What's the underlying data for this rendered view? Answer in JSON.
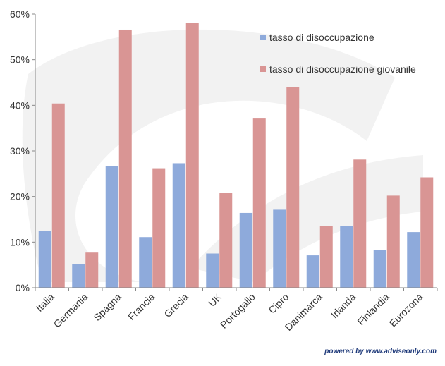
{
  "chart_data": {
    "type": "bar",
    "categories": [
      "Italia",
      "Germania",
      "Spagna",
      "Francia",
      "Grecia",
      "UK",
      "Portogallo",
      "Cipro",
      "Danimarca",
      "Irlanda",
      "Finlandia",
      "Eurozona"
    ],
    "series": [
      {
        "name": "tasso di disoccupazione",
        "color": "#8eaadb",
        "values": [
          12.5,
          5.2,
          26.7,
          11.1,
          27.3,
          7.5,
          16.4,
          17.1,
          7.1,
          13.6,
          8.2,
          12.2
        ]
      },
      {
        "name": "tasso di disoccupazione giovanile",
        "color": "#d99594",
        "values": [
          40.4,
          7.7,
          56.6,
          26.2,
          58.1,
          20.8,
          37.1,
          44.0,
          13.6,
          28.1,
          20.2,
          24.2
        ]
      }
    ],
    "ylim": [
      0,
      60
    ],
    "yticks": [
      "0%",
      "10%",
      "20%",
      "30%",
      "40%",
      "50%",
      "60%"
    ],
    "ytick_values": [
      0,
      10,
      20,
      30,
      40,
      50,
      60
    ],
    "grid": false,
    "legend_position": "top-right",
    "title": "",
    "xlabel": "",
    "ylabel": ""
  },
  "credit": "powered by  www.adviseonly.com"
}
